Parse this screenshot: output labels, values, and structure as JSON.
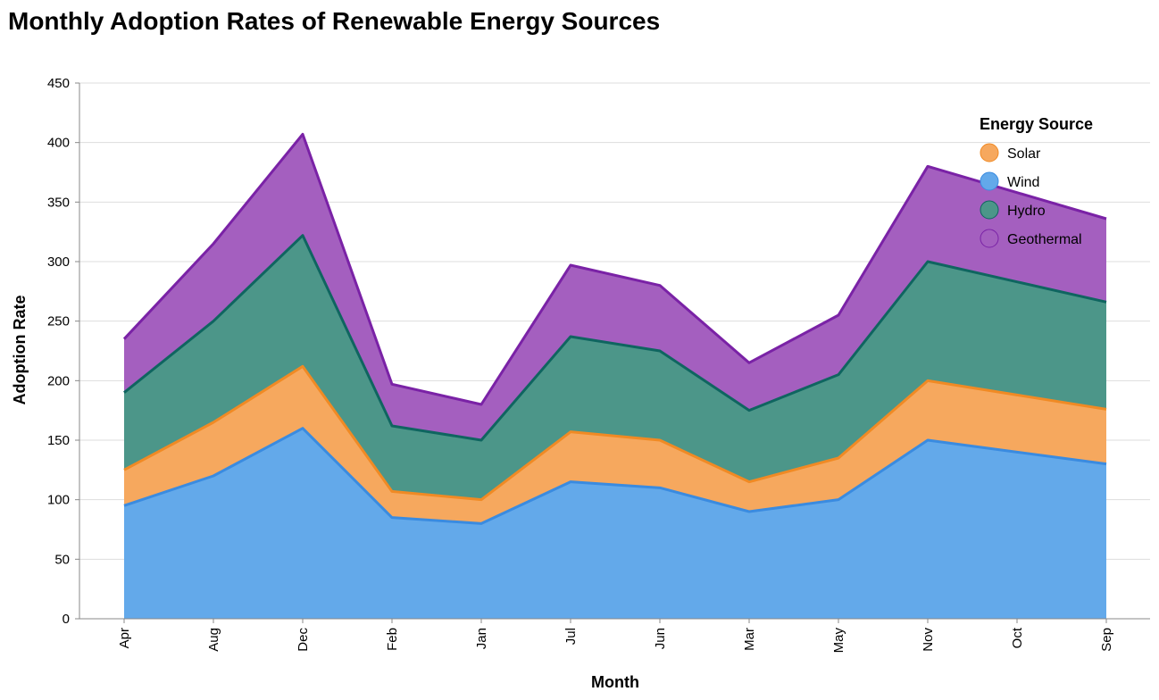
{
  "chart_data": {
    "type": "area",
    "stacked": true,
    "title": "Monthly Adoption Rates of Renewable Energy Sources",
    "xlabel": "Month",
    "ylabel": "Adoption Rate",
    "ylim": [
      0,
      450
    ],
    "yticks": [
      0,
      50,
      100,
      150,
      200,
      250,
      300,
      350,
      400,
      450
    ],
    "grid": true,
    "legend": {
      "title": "Energy Source",
      "position": "top-right"
    },
    "categories": [
      "Apr",
      "Aug",
      "Dec",
      "Feb",
      "Jan",
      "Jul",
      "Jun",
      "Mar",
      "May",
      "Nov",
      "Oct",
      "Sep"
    ],
    "series": [
      {
        "name": "Wind",
        "fill": "#63a9ea",
        "stroke": "#3a8be0",
        "values": [
          95,
          120,
          160,
          85,
          80,
          115,
          110,
          90,
          100,
          150,
          140,
          130
        ]
      },
      {
        "name": "Solar",
        "fill": "#f6a85e",
        "stroke": "#f08a24",
        "values": [
          30,
          45,
          52,
          22,
          20,
          42,
          40,
          25,
          35,
          50,
          48,
          46
        ]
      },
      {
        "name": "Hydro",
        "fill": "#4c9689",
        "stroke": "#0f6560",
        "values": [
          65,
          85,
          110,
          55,
          50,
          80,
          75,
          60,
          70,
          100,
          95,
          90
        ]
      },
      {
        "name": "Geothermal",
        "fill": "#a45fbf",
        "stroke": "#7a22a6",
        "values": [
          45,
          65,
          85,
          35,
          30,
          60,
          55,
          40,
          50,
          80,
          75,
          70
        ]
      }
    ],
    "legend_order": [
      "Solar",
      "Wind",
      "Hydro",
      "Geothermal"
    ]
  }
}
